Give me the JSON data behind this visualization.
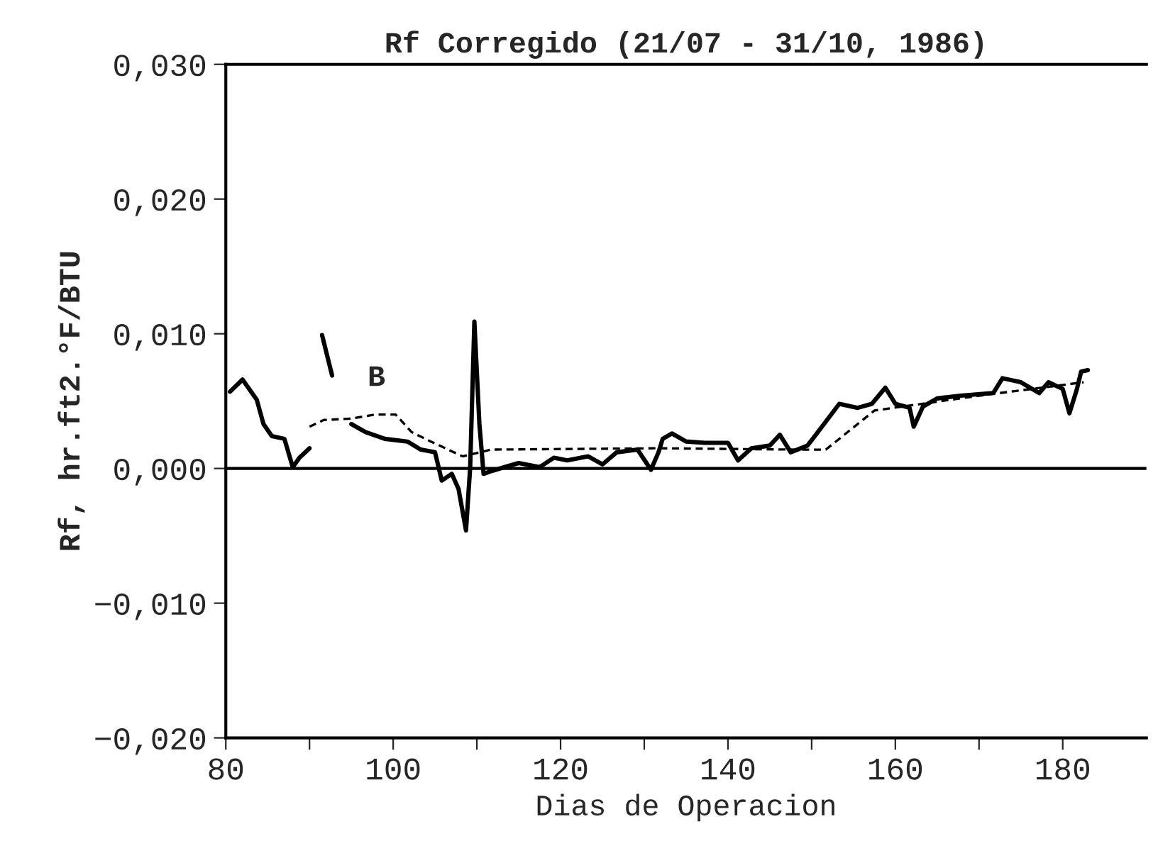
{
  "chart_data": {
    "type": "line",
    "title": "Rf Corregido (21/07 - 31/10, 1986)",
    "xlabel": "Dias de Operacion",
    "ylabel": "Rf, hr.ft2.°F/BTU",
    "xlim": [
      80,
      190
    ],
    "ylim": [
      -0.02,
      0.03
    ],
    "xticks": [
      80,
      {
        "value": 90,
        "label": null
      },
      100,
      {
        "value": 110,
        "label": null
      },
      120,
      {
        "value": 130,
        "label": null
      },
      140,
      {
        "value": 150,
        "label": null
      },
      160,
      {
        "value": 170,
        "label": null
      },
      180
    ],
    "yticks": [
      {
        "value": -0.02,
        "label": "−0,020"
      },
      {
        "value": -0.01,
        "label": "−0,010"
      },
      {
        "value": 0.0,
        "label": "0,000"
      },
      {
        "value": 0.01,
        "label": "0,010"
      },
      {
        "value": 0.02,
        "label": "0,020"
      },
      {
        "value": 0.03,
        "label": "0,030"
      }
    ],
    "grid": false,
    "legend": false,
    "marker": "none",
    "ref_lines": [
      {
        "axis": "y",
        "value": 0,
        "color": "#000000",
        "line_style": "solid"
      }
    ],
    "annotations": [
      {
        "text": "B",
        "x": 98,
        "y": 0.0067
      }
    ],
    "series": [
      {
        "color": "#000000",
        "line_style": "solid",
        "x": [
          80.5,
          82,
          83.7,
          84.5,
          85.5,
          87,
          88,
          88.8,
          90
        ],
        "values": [
          0.0057,
          0.0066,
          0.0051,
          0.0033,
          0.0024,
          0.0022,
          0.0001,
          0.0008,
          0.0015
        ]
      },
      {
        "color": "#000000",
        "line_style": "solid",
        "x": [
          95,
          96.7,
          99,
          101.7,
          103.3,
          105,
          105.8,
          107,
          107.8,
          108.7,
          109.2,
          109.7,
          110.3,
          110.8,
          111.7,
          113.3,
          115,
          117.5,
          119.2,
          120.8,
          123.3,
          125,
          126.7,
          129.2,
          130.8,
          131.7,
          132.2,
          133.3,
          135,
          137.2,
          140,
          141.2,
          142.8,
          145,
          146.2,
          147.5,
          149.5,
          150.5,
          153.3,
          155.5,
          157.2,
          158.8,
          160,
          161.7,
          162.2,
          163.3,
          165,
          167.8,
          171.7,
          172.8,
          175,
          177.2,
          178.3,
          180,
          180.8,
          181.7,
          182.2,
          183
        ],
        "values": [
          0.0033,
          0.0027,
          0.0022,
          0.002,
          0.0014,
          0.0012,
          -0.0009,
          -0.0004,
          -0.0015,
          -0.0046,
          0.0001,
          0.0109,
          0.0033,
          -0.0004,
          -0.0002,
          0.0001,
          0.0004,
          0.0001,
          0.0008,
          0.0006,
          0.0009,
          0.0003,
          0.0012,
          0.0014,
          -0.0001,
          0.0012,
          0.0022,
          0.0026,
          0.002,
          0.0019,
          0.0019,
          0.0006,
          0.0015,
          0.0017,
          0.0025,
          0.0012,
          0.0017,
          0.0025,
          0.0048,
          0.0045,
          0.0048,
          0.006,
          0.0048,
          0.0045,
          0.0031,
          0.0046,
          0.0052,
          0.0054,
          0.0056,
          0.0067,
          0.0064,
          0.0056,
          0.0064,
          0.0059,
          0.0041,
          0.0059,
          0.0072,
          0.0073
        ]
      },
      {
        "color": "#000000",
        "line_style": "dashed",
        "x": [
          90,
          91.7,
          95,
          97.8,
          100.3,
          102.2,
          104.5,
          108.3,
          111.7,
          131.7,
          148.3,
          151.7,
          157.5,
          170,
          182.5
        ],
        "values": [
          0.0031,
          0.0036,
          0.0037,
          0.004,
          0.004,
          0.0027,
          0.002,
          0.0009,
          0.0014,
          0.0015,
          0.0014,
          0.0014,
          0.0043,
          0.0054,
          0.0064
        ]
      },
      {
        "color": "#000000",
        "line_style": "solid",
        "x": [
          91.5,
          92.7
        ],
        "values": [
          0.0099,
          0.0069
        ]
      }
    ]
  }
}
